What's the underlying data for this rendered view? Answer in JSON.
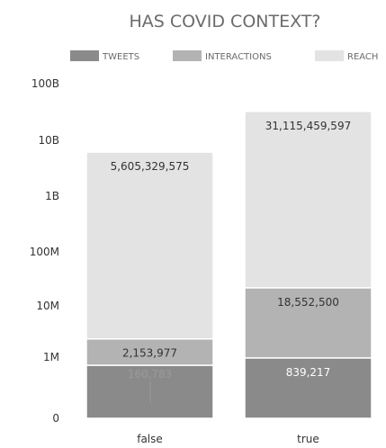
{
  "chart_data": {
    "type": "bar",
    "stacked": true,
    "title": "HAS COVID CONTEXT?",
    "legend_position": "top",
    "y_scale": "log",
    "ylim": [
      0,
      100000000000
    ],
    "y_ticks": [
      {
        "label": "0",
        "value": 0
      },
      {
        "label": "1M",
        "value": 1000000
      },
      {
        "label": "10M",
        "value": 10000000
      },
      {
        "label": "100M",
        "value": 100000000
      },
      {
        "label": "1B",
        "value": 1000000000
      },
      {
        "label": "10B",
        "value": 10000000000
      },
      {
        "label": "100B",
        "value": 100000000000
      }
    ],
    "categories": [
      "false",
      "true"
    ],
    "series": [
      {
        "name": "TWEETS",
        "color": "#8a8a8a",
        "values": [
          160783,
          839217
        ],
        "labels": [
          "160,783",
          "839,217"
        ],
        "label_colors": [
          "#9a9a9a",
          "#ffffff"
        ]
      },
      {
        "name": "INTERACTIONS",
        "color": "#b3b3b3",
        "values": [
          2153977,
          18552500
        ],
        "labels": [
          "2,153,977",
          "18,552,500"
        ],
        "label_colors": [
          "#333333",
          "#333333"
        ]
      },
      {
        "name": "REACH",
        "color": "#e3e3e3",
        "values": [
          5605329575,
          31115459597
        ],
        "labels": [
          "5,605,329,575",
          "31,115,459,597"
        ],
        "label_colors": [
          "#333333",
          "#333333"
        ]
      }
    ],
    "grid": false
  }
}
